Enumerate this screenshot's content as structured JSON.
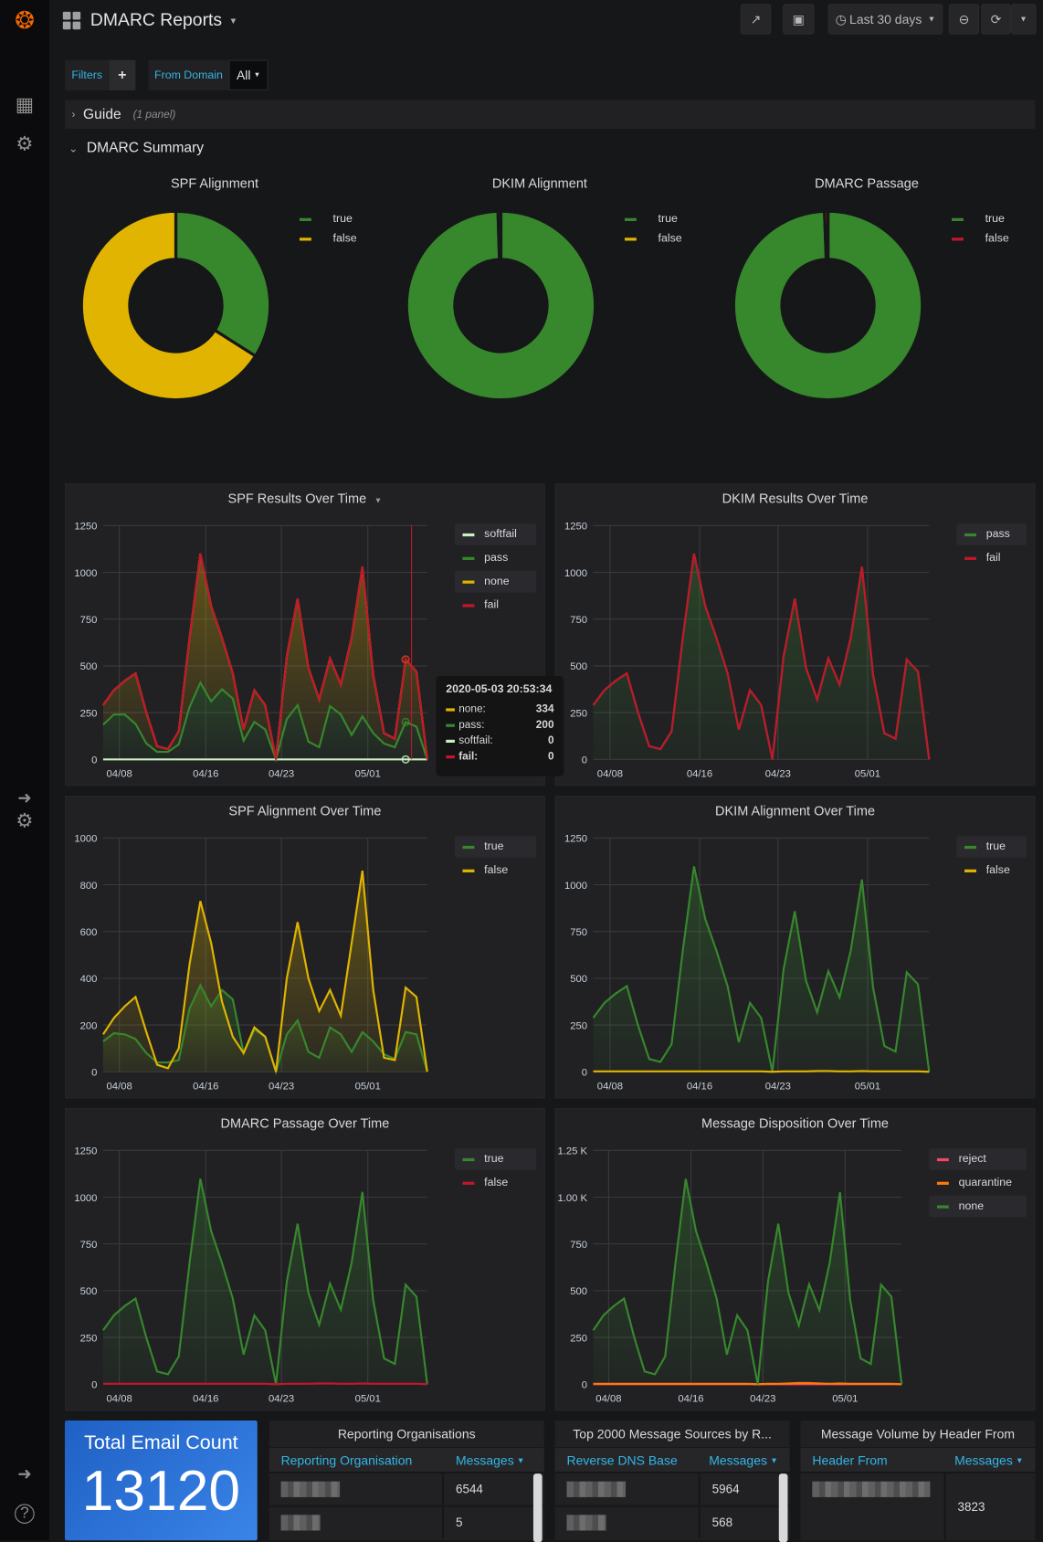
{
  "header": {
    "title": "DMARC Reports",
    "time_range": "Last 30 days"
  },
  "filters": {
    "filters_label": "Filters",
    "add": "+",
    "from_domain_label": "From Domain",
    "from_domain_value": "All"
  },
  "rows": {
    "guide": {
      "title": "Guide",
      "meta": "(1 panel)"
    },
    "summary": {
      "title": "DMARC Summary"
    }
  },
  "colors": {
    "green": "#37872d",
    "yellow": "#e0b400",
    "red": "#c4162a",
    "softfail": "#c8f2c2",
    "orange": "#ff780a",
    "reject": "#f2495c",
    "stat_blue": "#1f60c4",
    "table_header": "#33b5e5"
  },
  "pies": [
    {
      "title": "SPF Alignment",
      "slices": [
        {
          "label": "true",
          "percent": 34,
          "color": "#37872d"
        },
        {
          "label": "false",
          "percent": 66,
          "color": "#e0b400"
        }
      ]
    },
    {
      "title": "DKIM Alignment",
      "slices": [
        {
          "label": "true",
          "percent": 99.5,
          "color": "#37872d"
        },
        {
          "label": "false",
          "percent": 0.5,
          "color": "#e0b400"
        }
      ]
    },
    {
      "title": "DMARC Passage",
      "slices": [
        {
          "label": "true",
          "percent": 99.4,
          "color": "#37872d"
        },
        {
          "label": "false",
          "percent": 0.6,
          "color": "#c4162a"
        }
      ]
    }
  ],
  "tooltip": {
    "time": "2020-05-03 20:53:34",
    "date": "2020-05-03",
    "rows": [
      {
        "label": "none:",
        "value": "334",
        "color": "#e0b400"
      },
      {
        "label": "pass:",
        "value": "200",
        "color": "#37872d"
      },
      {
        "label": "softfail:",
        "value": "0",
        "color": "#c8f2c2"
      },
      {
        "label": "fail:",
        "value": "0",
        "color": "#c4162a"
      }
    ]
  },
  "chart_data": [
    {
      "type": "area",
      "title": "SPF Results Over Time",
      "stacked": true,
      "ylim": [
        0,
        1250
      ],
      "yticks": [
        "0",
        "250",
        "500",
        "750",
        "1000",
        "1250"
      ],
      "xticks": [
        "04/08",
        "04/16",
        "04/23",
        "05/01"
      ],
      "x": [
        "2020-04-05",
        "2020-04-06",
        "2020-04-07",
        "2020-04-08",
        "2020-04-09",
        "2020-04-10",
        "2020-04-11",
        "2020-04-12",
        "2020-04-13",
        "2020-04-14",
        "2020-04-15",
        "2020-04-16",
        "2020-04-17",
        "2020-04-18",
        "2020-04-19",
        "2020-04-20",
        "2020-04-21",
        "2020-04-22",
        "2020-04-23",
        "2020-04-24",
        "2020-04-25",
        "2020-04-26",
        "2020-04-27",
        "2020-04-28",
        "2020-04-29",
        "2020-04-30",
        "2020-05-01",
        "2020-05-02",
        "2020-05-03",
        "2020-05-04",
        "2020-05-05"
      ],
      "series": [
        {
          "name": "softfail",
          "color": "#c8f2c2",
          "values": [
            0,
            0,
            0,
            0,
            0,
            0,
            0,
            0,
            0,
            0,
            0,
            0,
            0,
            0,
            0,
            0,
            0,
            0,
            0,
            0,
            0,
            0,
            0,
            0,
            0,
            0,
            0,
            0,
            0,
            0,
            0
          ]
        },
        {
          "name": "pass",
          "color": "#37872d",
          "values": [
            185,
            240,
            240,
            190,
            85,
            40,
            40,
            80,
            280,
            410,
            310,
            375,
            325,
            100,
            200,
            160,
            0,
            215,
            290,
            95,
            65,
            285,
            240,
            130,
            230,
            140,
            85,
            65,
            200,
            175,
            0
          ]
        },
        {
          "name": "none",
          "color": "#e0b400",
          "values": [
            105,
            130,
            180,
            270,
            165,
            30,
            15,
            70,
            370,
            690,
            510,
            275,
            135,
            60,
            170,
            130,
            0,
            335,
            570,
            395,
            255,
            255,
            160,
            520,
            800,
            310,
            55,
            45,
            334,
            295,
            0
          ]
        },
        {
          "name": "fail",
          "color": "#c4162a",
          "values": [
            0,
            0,
            0,
            0,
            0,
            0,
            0,
            0,
            0,
            0,
            0,
            0,
            0,
            0,
            0,
            0,
            0,
            0,
            0,
            0,
            0,
            0,
            0,
            0,
            0,
            0,
            0,
            0,
            0,
            0,
            0
          ]
        }
      ],
      "legend_highlight": [
        "softfail",
        "none"
      ],
      "tooltip": true
    },
    {
      "type": "area",
      "title": "DKIM Results Over Time",
      "stacked": true,
      "ylim": [
        0,
        1250
      ],
      "yticks": [
        "0",
        "250",
        "500",
        "750",
        "1000",
        "1250"
      ],
      "xticks": [
        "04/08",
        "04/16",
        "04/23",
        "05/01"
      ],
      "series": [
        {
          "name": "pass",
          "color": "#37872d",
          "values": [
            290,
            370,
            420,
            460,
            250,
            70,
            55,
            150,
            650,
            1100,
            820,
            650,
            460,
            160,
            370,
            290,
            0,
            550,
            860,
            490,
            320,
            540,
            400,
            650,
            1030,
            450,
            140,
            110,
            534,
            470,
            0
          ]
        },
        {
          "name": "fail",
          "color": "#c4162a",
          "values": [
            0,
            0,
            0,
            0,
            0,
            0,
            0,
            0,
            0,
            0,
            0,
            0,
            0,
            0,
            0,
            0,
            0,
            0,
            0,
            0,
            0,
            0,
            0,
            0,
            0,
            0,
            0,
            0,
            0,
            0,
            0
          ]
        }
      ],
      "legend_highlight": [
        "pass"
      ]
    },
    {
      "type": "area",
      "title": "SPF Alignment Over Time",
      "stacked": false,
      "ylim": [
        0,
        1000
      ],
      "yticks": [
        "0",
        "200",
        "400",
        "600",
        "800",
        "1000"
      ],
      "xticks": [
        "04/08",
        "04/16",
        "04/23",
        "05/01"
      ],
      "series": [
        {
          "name": "true",
          "color": "#37872d",
          "values": [
            130,
            165,
            160,
            140,
            80,
            40,
            40,
            50,
            270,
            370,
            280,
            350,
            310,
            80,
            180,
            150,
            0,
            160,
            220,
            85,
            60,
            190,
            160,
            85,
            170,
            130,
            75,
            55,
            170,
            160,
            0
          ]
        },
        {
          "name": "false",
          "color": "#e0b400",
          "values": [
            160,
            230,
            280,
            320,
            170,
            30,
            15,
            100,
            460,
            730,
            550,
            300,
            150,
            80,
            190,
            150,
            0,
            400,
            640,
            400,
            260,
            350,
            240,
            550,
            860,
            350,
            60,
            50,
            360,
            320,
            0
          ]
        }
      ],
      "legend_highlight": [
        "true"
      ]
    },
    {
      "type": "area",
      "title": "DKIM Alignment Over Time",
      "stacked": false,
      "ylim": [
        0,
        1250
      ],
      "yticks": [
        "0",
        "250",
        "500",
        "750",
        "1000",
        "1250"
      ],
      "xticks": [
        "04/08",
        "04/16",
        "04/23",
        "05/01"
      ],
      "series": [
        {
          "name": "true",
          "color": "#37872d",
          "values": [
            288,
            368,
            418,
            458,
            248,
            68,
            53,
            148,
            648,
            1098,
            818,
            648,
            458,
            158,
            368,
            288,
            0,
            548,
            858,
            488,
            318,
            538,
            398,
            648,
            1028,
            448,
            138,
            108,
            532,
            468,
            0
          ]
        },
        {
          "name": "false",
          "color": "#e0b400",
          "values": [
            2,
            2,
            2,
            2,
            2,
            2,
            2,
            2,
            2,
            2,
            2,
            2,
            2,
            2,
            2,
            2,
            0,
            2,
            2,
            2,
            4,
            4,
            2,
            2,
            4,
            2,
            2,
            2,
            2,
            2,
            0
          ]
        }
      ],
      "legend_highlight": [
        "true"
      ]
    },
    {
      "type": "area",
      "title": "DMARC Passage Over Time",
      "stacked": false,
      "ylim": [
        0,
        1250
      ],
      "yticks": [
        "0",
        "250",
        "500",
        "750",
        "1000",
        "1250"
      ],
      "xticks": [
        "04/08",
        "04/16",
        "04/23",
        "05/01"
      ],
      "series": [
        {
          "name": "true",
          "color": "#37872d",
          "values": [
            288,
            368,
            418,
            458,
            248,
            68,
            53,
            148,
            648,
            1098,
            818,
            648,
            458,
            158,
            368,
            288,
            0,
            548,
            858,
            488,
            318,
            538,
            398,
            648,
            1028,
            448,
            138,
            108,
            532,
            468,
            0
          ]
        },
        {
          "name": "false",
          "color": "#c4162a",
          "values": [
            2,
            2,
            2,
            2,
            2,
            2,
            2,
            2,
            2,
            2,
            2,
            2,
            2,
            2,
            2,
            2,
            0,
            2,
            2,
            2,
            4,
            4,
            2,
            2,
            4,
            2,
            2,
            2,
            2,
            2,
            0
          ]
        }
      ],
      "legend_highlight": [
        "true"
      ]
    },
    {
      "type": "area",
      "title": "Message Disposition Over Time",
      "stacked": false,
      "ylim": [
        0,
        1250
      ],
      "yticks": [
        "0",
        "250",
        "500",
        "750",
        "1.00 K",
        "1.25 K"
      ],
      "xticks": [
        "04/08",
        "04/16",
        "04/23",
        "05/01"
      ],
      "series": [
        {
          "name": "reject",
          "color": "#f2495c",
          "values": [
            0,
            0,
            0,
            0,
            0,
            0,
            0,
            0,
            0,
            0,
            0,
            0,
            0,
            0,
            0,
            0,
            0,
            0,
            0,
            0,
            0,
            0,
            0,
            0,
            0,
            0,
            0,
            0,
            0,
            0,
            0
          ]
        },
        {
          "name": "quarantine",
          "color": "#ff780a",
          "values": [
            2,
            2,
            2,
            2,
            2,
            2,
            2,
            2,
            2,
            2,
            2,
            2,
            2,
            2,
            2,
            2,
            0,
            2,
            2,
            4,
            6,
            6,
            4,
            2,
            4,
            2,
            2,
            2,
            2,
            2,
            0
          ]
        },
        {
          "name": "none",
          "color": "#37872d",
          "values": [
            288,
            368,
            418,
            458,
            248,
            68,
            53,
            148,
            648,
            1098,
            818,
            648,
            458,
            158,
            368,
            288,
            0,
            548,
            858,
            486,
            314,
            534,
            396,
            648,
            1026,
            448,
            138,
            108,
            532,
            468,
            0
          ]
        }
      ],
      "legend_highlight": [
        "reject",
        "none"
      ]
    }
  ],
  "stat": {
    "title": "Total Email Count",
    "value": "13120"
  },
  "tables": [
    {
      "title": "Reporting Organisations",
      "columns": [
        "Reporting Organisation",
        "Messages"
      ],
      "rows": [
        [
          "",
          "6544"
        ],
        [
          "",
          "5"
        ]
      ]
    },
    {
      "title": "Top 2000 Message Sources by R...",
      "columns": [
        "Reverse DNS Base",
        "Messages"
      ],
      "rows": [
        [
          "",
          "5964"
        ],
        [
          "",
          "568"
        ]
      ]
    },
    {
      "title": "Message Volume by Header From",
      "columns": [
        "Header From",
        "Messages"
      ],
      "rows": [
        [
          "",
          "3823"
        ]
      ]
    }
  ]
}
